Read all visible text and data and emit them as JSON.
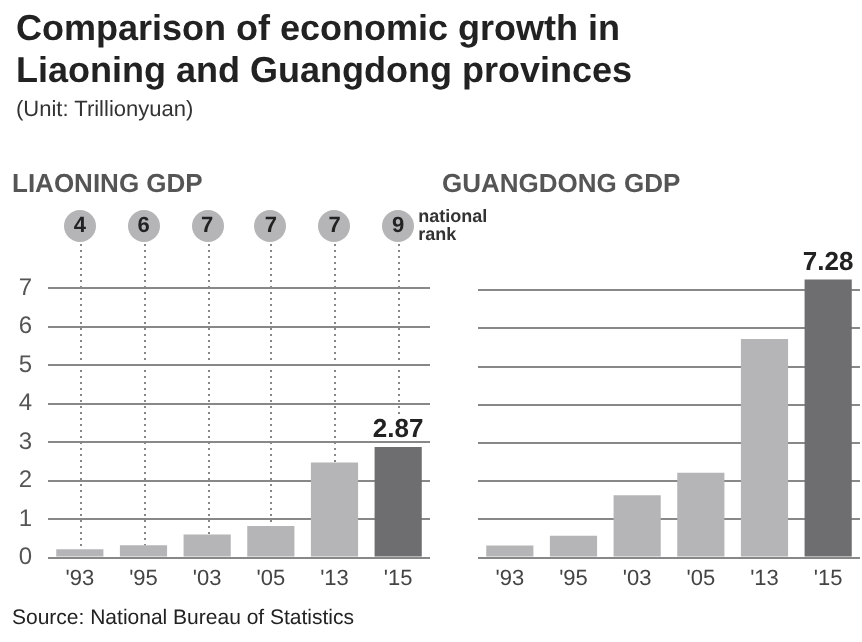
{
  "chart_data": [
    {
      "type": "other",
      "title": "Comparison of economic growth in Liaoning and Guangdong provinces",
      "subtitle": "(Unit: Trillionyuan)",
      "annotations": [
        "Source: National Bureau of Statistics"
      ]
    },
    {
      "type": "bar",
      "title": "LIAONING GDP",
      "categories": [
        "'93",
        "'95",
        "'03",
        "'05",
        "'13",
        "'15"
      ],
      "values": [
        0.22,
        0.32,
        0.6,
        0.82,
        2.47,
        2.87
      ],
      "colors": [
        "#b5b5b8",
        "#b5b5b8",
        "#b5b5b8",
        "#b5b5b8",
        "#b5b5b8",
        "#6e6e71"
      ],
      "value_labels": [
        null,
        null,
        null,
        null,
        null,
        "2.87"
      ],
      "ylim": [
        0,
        7
      ],
      "yticks": [
        0,
        1,
        2,
        3,
        4,
        5,
        6,
        7
      ],
      "grid": true,
      "legend": false,
      "annotations": [
        "4",
        "6",
        "7",
        "7",
        "7",
        "9",
        "national rank"
      ]
    },
    {
      "type": "bar",
      "title": "GUANGDONG GDP",
      "categories": [
        "'93",
        "'95",
        "'03",
        "'05",
        "'13",
        "'15"
      ],
      "values": [
        0.32,
        0.57,
        1.63,
        2.22,
        5.72,
        7.28
      ],
      "colors": [
        "#b5b5b8",
        "#b5b5b8",
        "#b5b5b8",
        "#b5b5b8",
        "#b5b5b8",
        "#6e6e71"
      ],
      "value_labels": [
        null,
        null,
        null,
        null,
        null,
        "7.28"
      ],
      "yticks": [
        0,
        1,
        2,
        3,
        4,
        5,
        6,
        7
      ],
      "grid": "y",
      "legend": false,
      "tick_labels": "x"
    }
  ]
}
